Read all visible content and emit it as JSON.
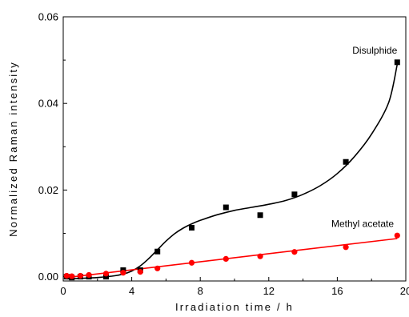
{
  "chart_data": {
    "type": "scatter",
    "title": "",
    "xlabel": "Irradiation time / h",
    "ylabel": "Normalized Raman intensity",
    "xlim": [
      0,
      20
    ],
    "ylim": [
      -0.001,
      0.06
    ],
    "xticks": [
      0,
      4,
      8,
      12,
      16,
      20
    ],
    "xtick_labels": [
      "0",
      "4",
      "8",
      "12",
      "16",
      "20"
    ],
    "yticks": [
      0,
      0.02,
      0.04,
      0.06
    ],
    "ytick_labels": [
      "0.00",
      "0.02",
      "0.04",
      "0.06"
    ],
    "grid": false,
    "series": [
      {
        "name": "Disulphide",
        "marker": "square",
        "color": "#000000",
        "fit": "smooth",
        "points": [
          [
            0.2,
            0.0
          ],
          [
            0.5,
            -0.0002
          ],
          [
            1.0,
            0.0
          ],
          [
            1.5,
            0.0
          ],
          [
            2.5,
            0.0
          ],
          [
            3.5,
            0.0015
          ],
          [
            4.5,
            0.0015
          ],
          [
            5.5,
            0.0058
          ],
          [
            7.5,
            0.0113
          ],
          [
            9.5,
            0.016
          ],
          [
            11.5,
            0.0142
          ],
          [
            13.5,
            0.019
          ],
          [
            16.5,
            0.0265
          ],
          [
            19.5,
            0.0495
          ]
        ],
        "fit_points": [
          [
            0.2,
            -0.0005
          ],
          [
            1,
            -0.0004
          ],
          [
            2,
            -0.0002
          ],
          [
            3,
            0.0002
          ],
          [
            3.5,
            0.0006
          ],
          [
            4,
            0.0013
          ],
          [
            4.5,
            0.0025
          ],
          [
            5,
            0.0042
          ],
          [
            5.5,
            0.0062
          ],
          [
            6,
            0.0082
          ],
          [
            6.5,
            0.0099
          ],
          [
            7,
            0.0112
          ],
          [
            7.5,
            0.0122
          ],
          [
            8,
            0.013
          ],
          [
            9,
            0.0143
          ],
          [
            10,
            0.0153
          ],
          [
            11,
            0.016
          ],
          [
            12,
            0.0167
          ],
          [
            13,
            0.0176
          ],
          [
            14,
            0.019
          ],
          [
            15,
            0.021
          ],
          [
            16,
            0.0238
          ],
          [
            17,
            0.0277
          ],
          [
            18,
            0.0329
          ],
          [
            19,
            0.0402
          ],
          [
            19.5,
            0.049
          ]
        ]
      },
      {
        "name": "Methyl acetate",
        "marker": "circle",
        "color": "#ff0000",
        "fit": "linear",
        "points": [
          [
            0.2,
            0.0002
          ],
          [
            0.5,
            0.0001
          ],
          [
            1.0,
            0.0002
          ],
          [
            1.5,
            0.0004
          ],
          [
            2.5,
            0.0007
          ],
          [
            3.5,
            0.0009
          ],
          [
            4.5,
            0.0011
          ],
          [
            5.5,
            0.0019
          ],
          [
            7.5,
            0.0032
          ],
          [
            9.5,
            0.0041
          ],
          [
            11.5,
            0.0047
          ],
          [
            13.5,
            0.0057
          ],
          [
            16.5,
            0.0068
          ],
          [
            19.5,
            0.0095
          ]
        ],
        "fit_points": [
          [
            0.2,
            -0.0002
          ],
          [
            19.5,
            0.0088
          ]
        ]
      }
    ],
    "annotations": [
      {
        "text": "Disulphide",
        "x": 19.5,
        "y": 0.0515,
        "anchor": "end"
      },
      {
        "text": "Methyl acetate",
        "x": 19.3,
        "y": 0.0115,
        "anchor": "end"
      }
    ]
  }
}
